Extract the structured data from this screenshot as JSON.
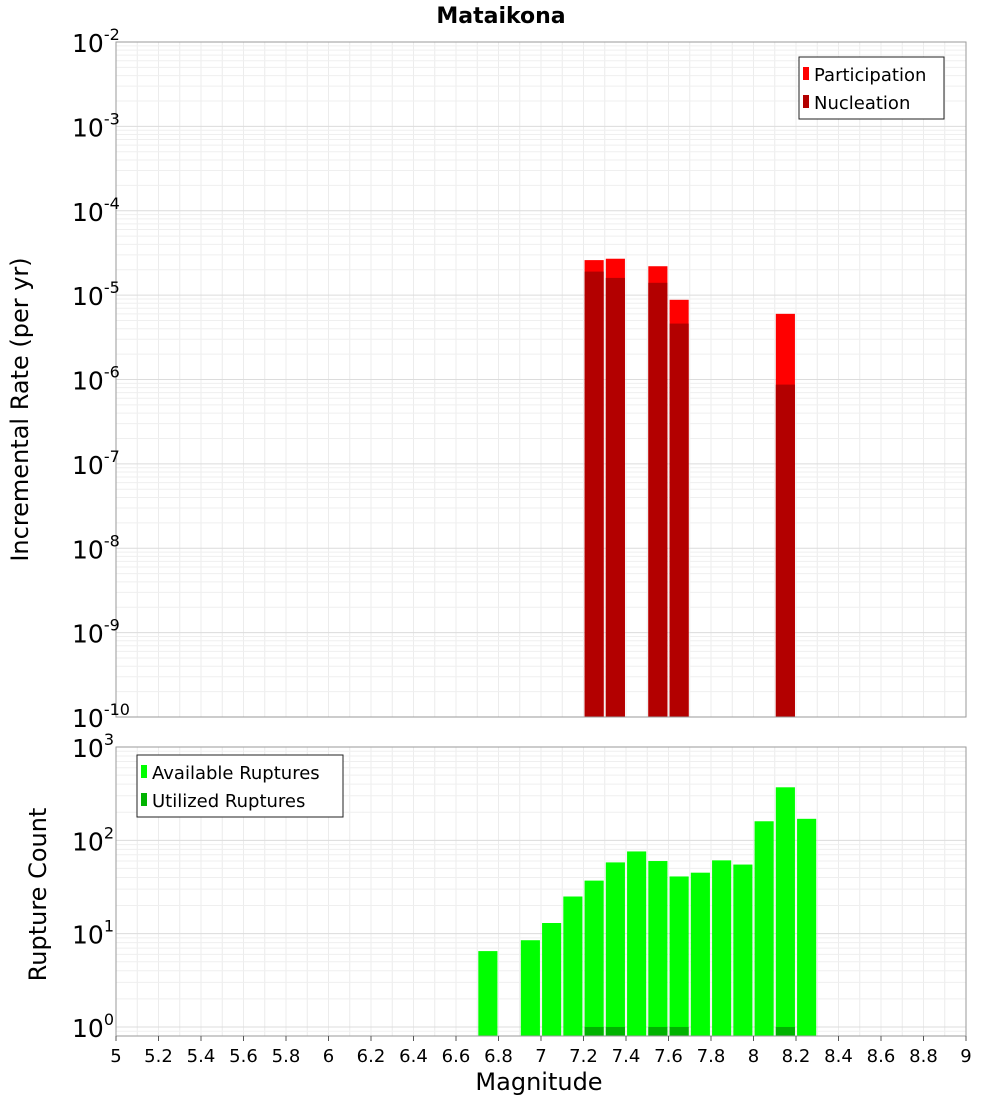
{
  "chart_data": [
    {
      "type": "bar",
      "title": "Mataikona",
      "xlabel": "",
      "ylabel": "Incremental Rate (per yr)",
      "yscale": "log",
      "ylim": [
        1e-10,
        0.01
      ],
      "xlim": [
        5,
        9
      ],
      "y_ticks": [
        {
          "base": "10",
          "exp": "-10"
        },
        {
          "base": "10",
          "exp": "-9"
        },
        {
          "base": "10",
          "exp": "-8"
        },
        {
          "base": "10",
          "exp": "-7"
        },
        {
          "base": "10",
          "exp": "-6"
        },
        {
          "base": "10",
          "exp": "-5"
        },
        {
          "base": "10",
          "exp": "-4"
        },
        {
          "base": "10",
          "exp": "-3"
        },
        {
          "base": "10",
          "exp": "-2"
        }
      ],
      "legend_position": "top-right",
      "series": [
        {
          "name": "Participation",
          "color": "#ff0000",
          "points": [
            [
              7.25,
              2.6e-05
            ],
            [
              7.35,
              2.7e-05
            ],
            [
              7.55,
              2.2e-05
            ],
            [
              7.65,
              8.8e-06
            ],
            [
              8.15,
              6e-06
            ]
          ]
        },
        {
          "name": "Nucleation",
          "color": "#b30000",
          "points": [
            [
              7.25,
              1.9e-05
            ],
            [
              7.35,
              1.6e-05
            ],
            [
              7.55,
              1.4e-05
            ],
            [
              7.65,
              4.6e-06
            ],
            [
              8.15,
              8.7e-07
            ]
          ]
        }
      ]
    },
    {
      "type": "bar",
      "title": "",
      "xlabel": "Magnitude",
      "ylabel": "Rupture Count",
      "yscale": "log",
      "ylim": [
        0.8,
        1000
      ],
      "xlim": [
        5,
        9
      ],
      "x_ticks": [
        "5",
        "5.2",
        "5.4",
        "5.6",
        "5.8",
        "6",
        "6.2",
        "6.4",
        "6.6",
        "6.8",
        "7",
        "7.2",
        "7.4",
        "7.6",
        "7.8",
        "8",
        "8.2",
        "8.4",
        "8.6",
        "8.8",
        "9"
      ],
      "y_ticks": [
        {
          "base": "10",
          "exp": "0"
        },
        {
          "base": "10",
          "exp": "1"
        },
        {
          "base": "10",
          "exp": "2"
        },
        {
          "base": "10",
          "exp": "3"
        }
      ],
      "legend_position": "top-left",
      "series": [
        {
          "name": "Available Ruptures",
          "color": "#00ff00",
          "points": [
            [
              6.75,
              6.5
            ],
            [
              6.95,
              8.5
            ],
            [
              7.05,
              13
            ],
            [
              7.15,
              25
            ],
            [
              7.25,
              37
            ],
            [
              7.35,
              58
            ],
            [
              7.45,
              76
            ],
            [
              7.55,
              60
            ],
            [
              7.65,
              41
            ],
            [
              7.75,
              45
            ],
            [
              7.85,
              61
            ],
            [
              7.95,
              55
            ],
            [
              8.05,
              160
            ],
            [
              8.15,
              370
            ],
            [
              8.25,
              170
            ]
          ]
        },
        {
          "name": "Utilized Ruptures",
          "color": "#00b300",
          "points": [
            [
              7.25,
              1
            ],
            [
              7.35,
              1
            ],
            [
              7.55,
              1
            ],
            [
              7.65,
              1
            ],
            [
              8.15,
              1
            ]
          ]
        }
      ]
    }
  ]
}
